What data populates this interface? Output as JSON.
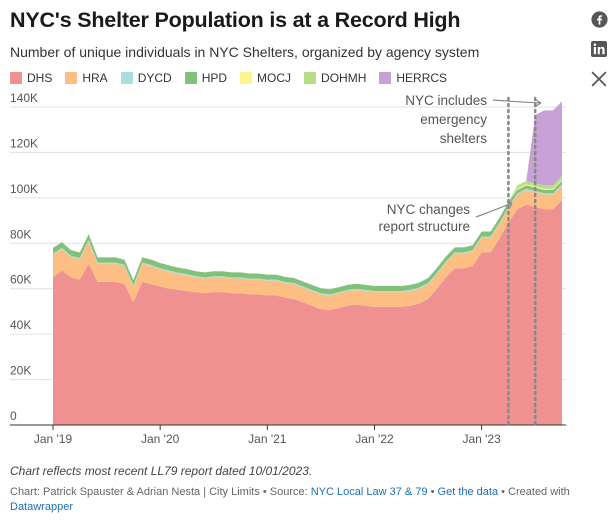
{
  "title": "NYC's Shelter Population is at a Record High",
  "subtitle": "Number of unique individuals in NYC Shelters, organized by agency system",
  "legend": [
    {
      "label": "DHS",
      "color": "#ef9091"
    },
    {
      "label": "HRA",
      "color": "#fdbe84"
    },
    {
      "label": "DYCD",
      "color": "#a9dedc"
    },
    {
      "label": "HPD",
      "color": "#82c17a"
    },
    {
      "label": "MOCJ",
      "color": "#fbf58c"
    },
    {
      "label": "DOHMH",
      "color": "#b7de86"
    },
    {
      "label": "HERRCS",
      "color": "#c7a0d6"
    }
  ],
  "share": {
    "facebook_icon": "facebook-icon",
    "linkedin_icon": "linkedin-icon",
    "x_icon": "x-icon"
  },
  "annotations": {
    "emergency": [
      "NYC includes",
      "emergency",
      "shelters"
    ],
    "structure": [
      "NYC changes",
      "report structure"
    ]
  },
  "footer": {
    "note": "Chart reflects most recent LL79 report dated 10/01/2023.",
    "credit_prefix": "Chart: Patrick Spauster & Adrian Nesta | City Limits • Source: ",
    "source_link": "NYC Local Law 37 & 79",
    "sep1": " • ",
    "get_data": "Get the data",
    "sep2": " • Created with ",
    "datawrapper": "Datawrapper"
  },
  "chart_data": {
    "type": "area",
    "stacked": true,
    "ylim": [
      0,
      140000
    ],
    "y_ticks": [
      0,
      20000,
      40000,
      60000,
      80000,
      100000,
      120000,
      140000
    ],
    "y_tick_labels": [
      "0",
      "20K",
      "40K",
      "60K",
      "80K",
      "100K",
      "120K",
      "140K"
    ],
    "x_ticks": [
      "2019-01",
      "2020-01",
      "2021-01",
      "2022-01",
      "2023-01"
    ],
    "x_tick_labels": [
      "Jan '19",
      "Jan '20",
      "Jan '21",
      "Jan '22",
      "Jan '23"
    ],
    "x": [
      "2019-01",
      "2019-02",
      "2019-03",
      "2019-04",
      "2019-05",
      "2019-06",
      "2019-07",
      "2019-08",
      "2019-09",
      "2019-10",
      "2019-11",
      "2019-12",
      "2020-01",
      "2020-02",
      "2020-03",
      "2020-04",
      "2020-05",
      "2020-06",
      "2020-07",
      "2020-08",
      "2020-09",
      "2020-10",
      "2020-11",
      "2020-12",
      "2021-01",
      "2021-02",
      "2021-03",
      "2021-04",
      "2021-05",
      "2021-06",
      "2021-07",
      "2021-08",
      "2021-09",
      "2021-10",
      "2021-11",
      "2021-12",
      "2022-01",
      "2022-02",
      "2022-03",
      "2022-04",
      "2022-05",
      "2022-06",
      "2022-07",
      "2022-08",
      "2022-09",
      "2022-10",
      "2022-11",
      "2022-12",
      "2023-01",
      "2023-02",
      "2023-03",
      "2023-04",
      "2023-05",
      "2023-06",
      "2023-07",
      "2023-08",
      "2023-09",
      "2023-10"
    ],
    "reference_lines": [
      "2023-04",
      "2023-07"
    ],
    "series": [
      {
        "name": "DHS",
        "color": "#ef9091",
        "values": [
          65000,
          68000,
          65000,
          64000,
          71000,
          63000,
          63000,
          63000,
          62000,
          54000,
          63000,
          62000,
          61000,
          60000,
          59500,
          59000,
          58500,
          58000,
          58500,
          58500,
          58000,
          58000,
          57500,
          57500,
          57000,
          57000,
          56000,
          55500,
          54000,
          52500,
          51000,
          50500,
          51500,
          52500,
          53000,
          52500,
          52000,
          52000,
          52000,
          52000,
          52500,
          53500,
          55500,
          60000,
          65000,
          69000,
          69000,
          70000,
          76000,
          76000,
          82000,
          89000,
          95000,
          97000,
          96000,
          95000,
          95000,
          99000
        ]
      },
      {
        "name": "HRA",
        "color": "#fdbe84",
        "values": [
          10000,
          9500,
          9000,
          9000,
          10000,
          8000,
          8000,
          8000,
          8000,
          7000,
          8000,
          8000,
          7500,
          7500,
          7000,
          7000,
          6500,
          6500,
          6500,
          6500,
          6500,
          6500,
          6500,
          6500,
          6500,
          6500,
          6500,
          6500,
          6500,
          6500,
          6500,
          6500,
          6500,
          6500,
          6500,
          6500,
          6500,
          6500,
          6500,
          6500,
          6500,
          6500,
          6500,
          6500,
          6500,
          6500,
          6500,
          6500,
          6500,
          6500,
          6500,
          6500,
          6500,
          6500,
          6500,
          6500,
          6500,
          6500
        ]
      },
      {
        "name": "DYCD",
        "color": "#a9dedc",
        "values": [
          500,
          500,
          500,
          500,
          500,
          500,
          500,
          500,
          500,
          500,
          500,
          500,
          500,
          500,
          500,
          500,
          500,
          500,
          500,
          500,
          500,
          500,
          500,
          500,
          500,
          500,
          500,
          500,
          500,
          500,
          500,
          500,
          500,
          500,
          500,
          500,
          500,
          500,
          500,
          500,
          500,
          500,
          500,
          500,
          500,
          500,
          500,
          500,
          500,
          500,
          500,
          500,
          500,
          500,
          500,
          500,
          500,
          500
        ]
      },
      {
        "name": "HPD",
        "color": "#82c17a",
        "values": [
          2500,
          2500,
          2500,
          2500,
          2500,
          2300,
          2300,
          2300,
          2300,
          2300,
          2300,
          2300,
          2300,
          2300,
          2300,
          2200,
          2200,
          2200,
          2200,
          2200,
          2200,
          2200,
          2200,
          2200,
          2200,
          2200,
          2200,
          2200,
          2200,
          2200,
          2200,
          2200,
          2200,
          2200,
          2200,
          2200,
          2200,
          2200,
          2200,
          2200,
          2200,
          2200,
          2200,
          2200,
          2200,
          2200,
          2200,
          2200,
          2200,
          2200,
          2200,
          2200,
          1500,
          1500,
          1500,
          1500,
          1500,
          1500
        ]
      },
      {
        "name": "MOCJ",
        "color": "#fbf58c",
        "values": [
          0,
          0,
          0,
          0,
          0,
          0,
          0,
          0,
          0,
          0,
          0,
          0,
          0,
          0,
          0,
          0,
          0,
          0,
          0,
          0,
          0,
          0,
          0,
          0,
          0,
          0,
          0,
          0,
          0,
          0,
          0,
          0,
          0,
          0,
          0,
          0,
          0,
          0,
          0,
          0,
          0,
          0,
          0,
          0,
          0,
          0,
          0,
          0,
          0,
          0,
          0,
          0,
          500,
          500,
          500,
          500,
          500,
          500
        ]
      },
      {
        "name": "DOHMH",
        "color": "#b7de86",
        "values": [
          0,
          0,
          0,
          0,
          0,
          0,
          0,
          0,
          0,
          0,
          0,
          0,
          0,
          0,
          0,
          0,
          0,
          0,
          0,
          0,
          0,
          0,
          0,
          0,
          0,
          0,
          0,
          0,
          0,
          0,
          0,
          0,
          0,
          0,
          0,
          0,
          0,
          0,
          0,
          0,
          0,
          0,
          0,
          0,
          0,
          0,
          0,
          0,
          0,
          0,
          0,
          0,
          1500,
          1500,
          1500,
          1500,
          1500,
          1500
        ]
      },
      {
        "name": "HERRCS",
        "color": "#c7a0d6",
        "values": [
          0,
          0,
          0,
          0,
          0,
          0,
          0,
          0,
          0,
          0,
          0,
          0,
          0,
          0,
          0,
          0,
          0,
          0,
          0,
          0,
          0,
          0,
          0,
          0,
          0,
          0,
          0,
          0,
          0,
          0,
          0,
          0,
          0,
          0,
          0,
          0,
          0,
          0,
          0,
          0,
          0,
          0,
          0,
          0,
          0,
          0,
          0,
          0,
          0,
          0,
          0,
          0,
          0,
          0,
          30000,
          33000,
          33000,
          33000
        ]
      }
    ]
  }
}
